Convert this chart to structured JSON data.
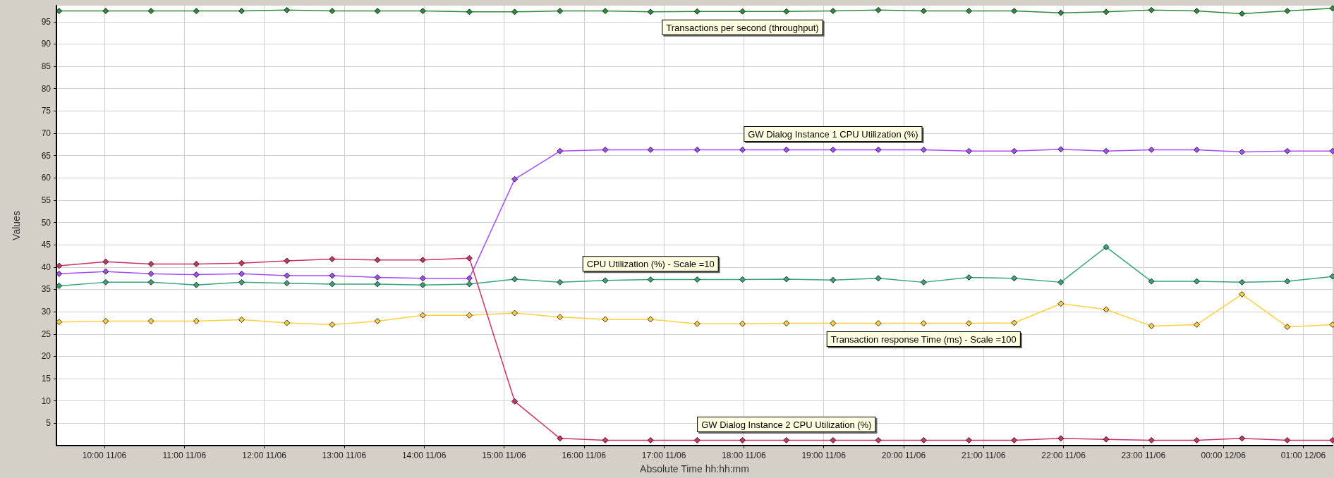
{
  "chart_data": {
    "type": "line",
    "xlabel": "Absolute Time hh:hh:mm",
    "ylabel": "Values",
    "x": [
      "--06-11T09:26",
      "--06-11T10:01",
      "--06-11T10:35",
      "--06-11T11:09",
      "--06-11T11:43",
      "--06-11T12:17",
      "--06-11T12:51",
      "--06-11T13:25",
      "--06-11T13:59",
      "--06-11T14:34",
      "--06-11T15:08",
      "--06-11T15:42",
      "--06-11T16:16",
      "--06-11T16:50",
      "--06-11T17:25",
      "--06-11T17:59",
      "--06-11T18:32",
      "--06-11T19:07",
      "--06-11T19:41",
      "--06-11T20:15",
      "--06-11T20:49",
      "--06-11T21:23",
      "--06-11T21:58",
      "--06-11T22:32",
      "--06-11T23:06",
      "--06-11T23:40",
      "--06-12T00:14",
      "--06-12T00:48",
      "--06-12T01:22"
    ],
    "series": [
      {
        "name": "Transactions per second (throughput)",
        "color": "#2e8b3e",
        "values": [
          97.4,
          97.4,
          97.4,
          97.4,
          97.4,
          97.6,
          97.4,
          97.4,
          97.4,
          97.2,
          97.2,
          97.4,
          97.4,
          97.2,
          97.3,
          97.3,
          97.3,
          97.4,
          97.6,
          97.4,
          97.4,
          97.4,
          97.0,
          97.2,
          97.6,
          97.4,
          96.8,
          97.4,
          98.0
        ]
      },
      {
        "name": "GW Dialog Instance 1 CPU Utilization (%)",
        "color": "#a64dff",
        "values": [
          38.5,
          39.0,
          38.5,
          38.3,
          38.5,
          38.1,
          38.1,
          37.7,
          37.5,
          37.5,
          59.7,
          66.0,
          66.3,
          66.3,
          66.3,
          66.3,
          66.3,
          66.3,
          66.3,
          66.3,
          66.0,
          66.0,
          66.4,
          66.0,
          66.3,
          66.3,
          65.8,
          66.0,
          66.0
        ]
      },
      {
        "name": "CPU Utilization (%) - Scale =10",
        "color": "#3aa37a",
        "values": [
          35.8,
          36.6,
          36.6,
          36.0,
          36.6,
          36.4,
          36.2,
          36.2,
          36.0,
          36.2,
          37.3,
          36.6,
          37.0,
          37.2,
          37.2,
          37.2,
          37.3,
          37.1,
          37.5,
          36.6,
          37.7,
          37.5,
          36.6,
          44.5,
          36.8,
          36.8,
          36.6,
          36.8,
          37.9
        ]
      },
      {
        "name": "Transaction response Time (ms) - Scale =100",
        "color": "#ffd040",
        "values": [
          27.7,
          27.9,
          27.9,
          27.9,
          28.2,
          27.5,
          27.1,
          27.9,
          29.2,
          29.2,
          29.7,
          28.8,
          28.3,
          28.3,
          27.3,
          27.3,
          27.4,
          27.4,
          27.4,
          27.4,
          27.4,
          27.5,
          31.8,
          30.5,
          26.8,
          27.1,
          33.9,
          26.6,
          27.1
        ]
      },
      {
        "name": "GW Dialog Instance 2 CPU Utilization (%)",
        "color": "#cc3366",
        "values": [
          40.3,
          41.2,
          40.7,
          40.7,
          40.9,
          41.4,
          41.8,
          41.6,
          41.6,
          42.0,
          9.9,
          1.6,
          1.2,
          1.2,
          1.2,
          1.2,
          1.2,
          1.2,
          1.2,
          1.2,
          1.2,
          1.2,
          1.6,
          1.4,
          1.2,
          1.2,
          1.6,
          1.2,
          1.2
        ]
      }
    ],
    "xlim": [
      "--06-11T09:24",
      "--06-12T01:22"
    ],
    "xticks": [
      {
        "value": "--06-11T10:00",
        "label": "10:00 11/06"
      },
      {
        "value": "--06-11T11:00",
        "label": "11:00 11/06"
      },
      {
        "value": "--06-11T12:00",
        "label": "12:00 11/06"
      },
      {
        "value": "--06-11T13:00",
        "label": "13:00 11/06"
      },
      {
        "value": "--06-11T14:00",
        "label": "14:00 11/06"
      },
      {
        "value": "--06-11T15:00",
        "label": "15:00 11/06"
      },
      {
        "value": "--06-11T16:00",
        "label": "16:00 11/06"
      },
      {
        "value": "--06-11T17:00",
        "label": "17:00 11/06"
      },
      {
        "value": "--06-11T18:00",
        "label": "18:00 11/06"
      },
      {
        "value": "--06-11T19:00",
        "label": "19:00 11/06"
      },
      {
        "value": "--06-11T20:00",
        "label": "20:00 11/06"
      },
      {
        "value": "--06-11T21:00",
        "label": "21:00 11/06"
      },
      {
        "value": "--06-11T22:00",
        "label": "22:00 11/06"
      },
      {
        "value": "--06-11T23:00",
        "label": "23:00 11/06"
      },
      {
        "value": "--06-12T00:00",
        "label": "00:00 12/06"
      },
      {
        "value": "--06-12T01:00",
        "label": "01:00 12/06"
      }
    ],
    "ylim": [
      0,
      98.6
    ],
    "yticks": [
      5,
      10,
      15,
      20,
      25,
      30,
      35,
      40,
      45,
      50,
      55,
      60,
      65,
      70,
      75,
      80,
      85,
      90,
      95
    ],
    "grid": true,
    "legend": false,
    "marker": "diamond",
    "line_style": "solid"
  }
}
